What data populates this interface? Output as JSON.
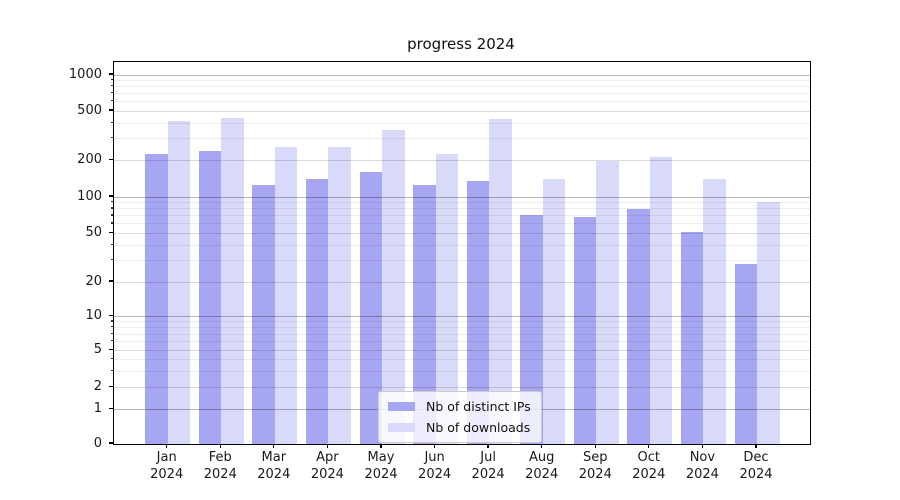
{
  "chart_data": {
    "type": "bar",
    "title": "progress 2024",
    "categories": [
      "Jan 2024",
      "Feb 2024",
      "Mar 2024",
      "Apr 2024",
      "May 2024",
      "Jun 2024",
      "Jul 2024",
      "Aug 2024",
      "Sep 2024",
      "Oct 2024",
      "Nov 2024",
      "Dec 2024"
    ],
    "series": [
      {
        "name": "Nb of distinct IPs",
        "color": "#a6a6f2",
        "values": [
          225,
          240,
          125,
          142,
          160,
          126,
          135,
          71,
          68,
          79,
          52,
          28
        ]
      },
      {
        "name": "Nb of downloads",
        "color": "#d9d9f9",
        "values": [
          415,
          440,
          255,
          255,
          350,
          227,
          430,
          142,
          200,
          212,
          140,
          91
        ]
      }
    ],
    "xlabel": "",
    "ylabel": "",
    "yscale": "symlog",
    "yticks": [
      0,
      1,
      2,
      5,
      10,
      20,
      50,
      100,
      200,
      500,
      1000
    ],
    "ylim": [
      0,
      1300
    ],
    "grid": true,
    "legend": {
      "position": "lower-center"
    }
  }
}
